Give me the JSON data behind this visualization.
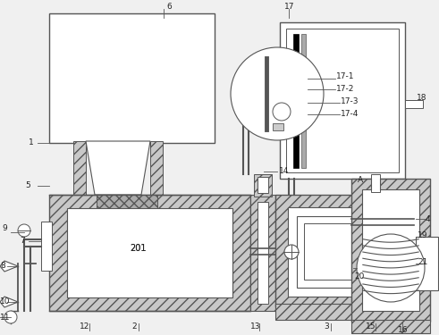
{
  "bg_color": "#f0f0f0",
  "line_color": "#555555",
  "fig_w": 4.91,
  "fig_h": 3.75,
  "dpi": 100
}
